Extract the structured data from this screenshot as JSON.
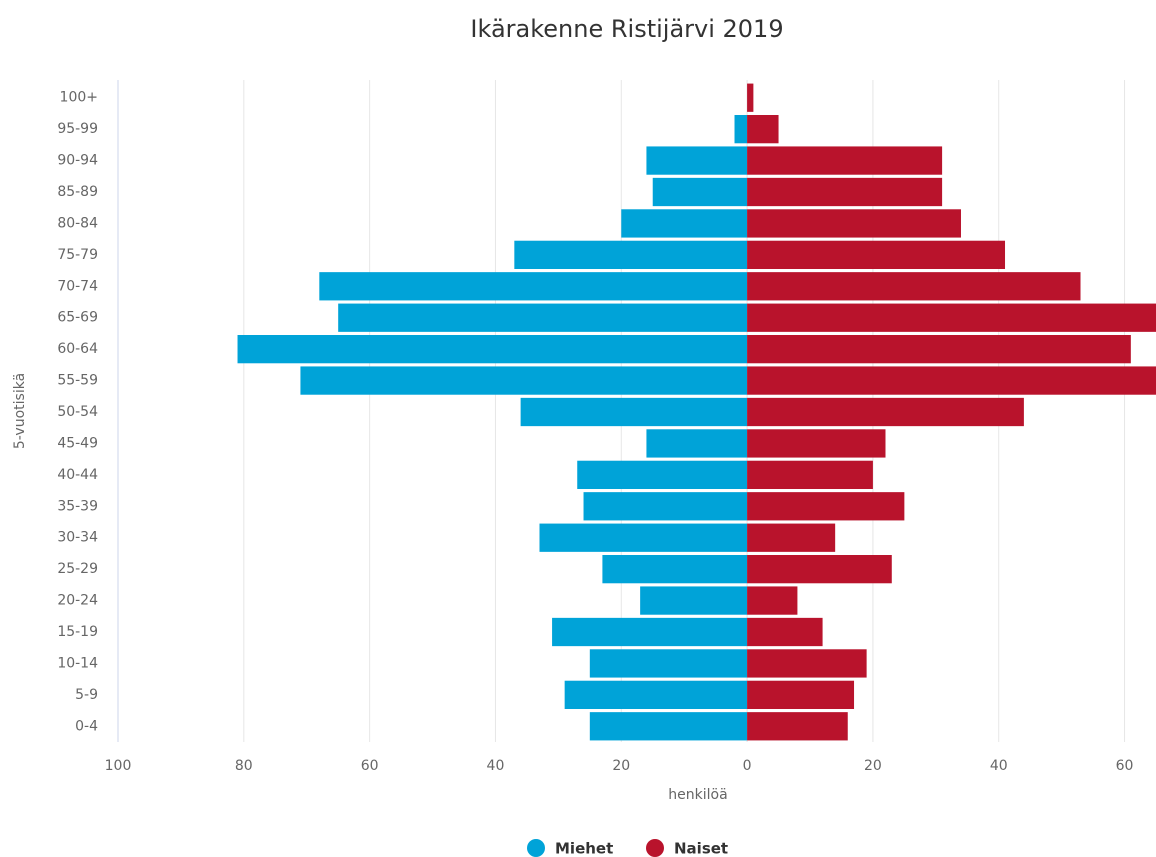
{
  "chart_data": {
    "type": "bar",
    "orientation": "horizontal",
    "stacking": "overlap",
    "title": "Ikärakenne Ristijärvi 2019",
    "xlabel": "henkilöä",
    "ylabel": "5-vuotisikä",
    "categories": [
      "100+",
      "95-99",
      "90-94",
      "85-89",
      "80-84",
      "75-79",
      "70-74",
      "65-69",
      "60-64",
      "55-59",
      "50-54",
      "45-49",
      "40-44",
      "35-39",
      "30-34",
      "25-29",
      "20-24",
      "15-19",
      "10-14",
      "5-9",
      "0-4"
    ],
    "series": [
      {
        "name": "Miehet",
        "color": "#00a3d8",
        "values": [
          0,
          -2,
          -16,
          -15,
          -20,
          -37,
          -68,
          -65,
          -81,
          -71,
          -36,
          -16,
          -27,
          -26,
          -33,
          -23,
          -17,
          -31,
          -25,
          -29,
          -25
        ]
      },
      {
        "name": "Naiset",
        "color": "#b9132c",
        "values": [
          1,
          5,
          31,
          31,
          34,
          41,
          53,
          65,
          61,
          66,
          44,
          22,
          20,
          25,
          14,
          23,
          8,
          12,
          19,
          17,
          16
        ]
      }
    ],
    "xlim": [
      -100,
      65
    ],
    "xticks": [
      {
        "value": -100,
        "label": "100"
      },
      {
        "value": -80,
        "label": "80"
      },
      {
        "value": -60,
        "label": "60"
      },
      {
        "value": -40,
        "label": "40"
      },
      {
        "value": -20,
        "label": "20"
      },
      0,
      20,
      40,
      60
    ],
    "grid": true,
    "legend": "bottom"
  }
}
